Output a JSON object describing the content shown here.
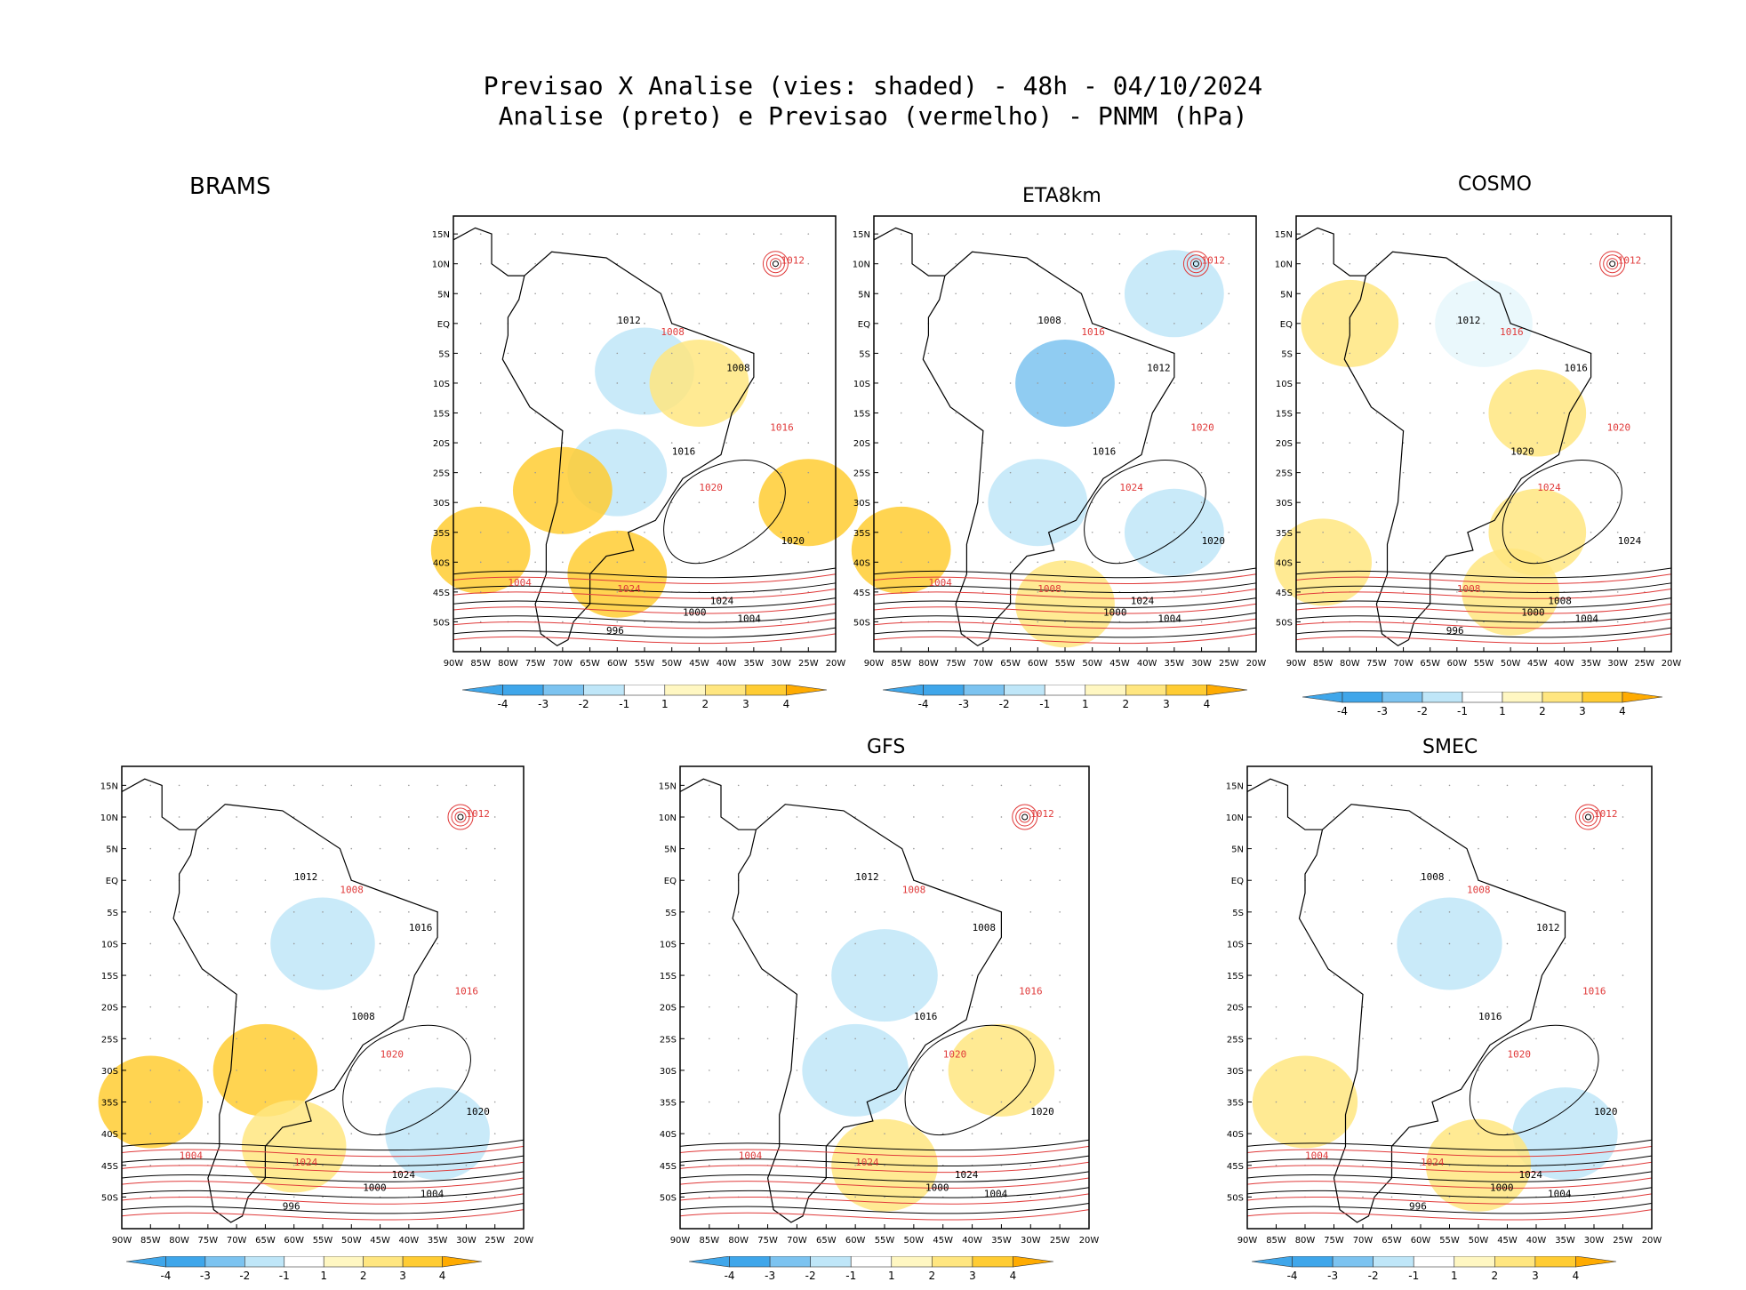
{
  "title": {
    "line1": "Previsao X Analise (vies: shaded) - 48h - 04/10/2024",
    "line2": "Analise (preto) e Previsao (vermelho) - PNMM (hPa)"
  },
  "colors": {
    "bias_neg_4": "#3fa6ea",
    "bias_neg_3": "#7cc3f0",
    "bias_neg_2": "#bfe6f8",
    "bias_neg_1": "#e6f7fb",
    "bias_zero": "#ffffff",
    "bias_pos_1": "#fff7c2",
    "bias_pos_2": "#ffe680",
    "bias_pos_3": "#ffcc33",
    "bias_pos_4": "#ffab00",
    "analysis_contour": "#000000",
    "forecast_contour": "#e03a3a"
  },
  "chart_data": [
    {
      "type": "heatmap",
      "model": "BRAMS",
      "xlabel": "",
      "ylabel": "",
      "x_ticks": [
        "90W",
        "85W",
        "80W",
        "75W",
        "70W",
        "65W",
        "60W",
        "55W",
        "50W",
        "45W",
        "40W",
        "35W",
        "30W",
        "25W",
        "20W"
      ],
      "y_ticks": [
        "15N",
        "10N",
        "5N",
        "EQ",
        "5S",
        "10S",
        "15S",
        "20S",
        "25S",
        "30S",
        "35S",
        "40S",
        "45S",
        "50S"
      ],
      "xlim": [
        -90,
        -20
      ],
      "ylim": [
        -55,
        18
      ],
      "colorbar_ticks": [
        "-4",
        "-3",
        "-2",
        "-1",
        "1",
        "2",
        "3",
        "4"
      ],
      "black_contour_labels": [
        "1012",
        "1008",
        "1016",
        "1020",
        "1024",
        "1004",
        "1000",
        "996"
      ],
      "red_contour_labels": [
        "1012",
        "1008",
        "1016",
        "1020",
        "1024",
        "1004"
      ],
      "bias_regions": [
        {
          "lon": -55,
          "lat": -8,
          "bias": -2
        },
        {
          "lon": -60,
          "lat": -25,
          "bias": -2
        },
        {
          "lon": -45,
          "lat": -10,
          "bias": 2
        },
        {
          "lon": -25,
          "lat": -30,
          "bias": 3
        },
        {
          "lon": -85,
          "lat": -38,
          "bias": 3
        },
        {
          "lon": -60,
          "lat": -42,
          "bias": 3
        },
        {
          "lon": -70,
          "lat": -28,
          "bias": 3
        }
      ]
    },
    {
      "type": "heatmap",
      "model": "ETA8km",
      "x_ticks": [
        "90W",
        "85W",
        "80W",
        "75W",
        "70W",
        "65W",
        "60W",
        "55W",
        "50W",
        "45W",
        "40W",
        "35W",
        "30W",
        "25W",
        "20W"
      ],
      "y_ticks": [
        "15N",
        "10N",
        "5N",
        "EQ",
        "5S",
        "10S",
        "15S",
        "20S",
        "25S",
        "30S",
        "35S",
        "40S",
        "45S",
        "50S"
      ],
      "xlim": [
        -90,
        -20
      ],
      "ylim": [
        -55,
        18
      ],
      "colorbar_ticks": [
        "-4",
        "-3",
        "-2",
        "-1",
        "1",
        "2",
        "3",
        "4"
      ],
      "black_contour_labels": [
        "1008",
        "1012",
        "1016",
        "1020",
        "1024",
        "1004",
        "1000"
      ],
      "red_contour_labels": [
        "1012",
        "1016",
        "1020",
        "1024",
        "1008",
        "1004"
      ],
      "bias_regions": [
        {
          "lon": -55,
          "lat": -10,
          "bias": -3
        },
        {
          "lon": -60,
          "lat": -30,
          "bias": -2
        },
        {
          "lon": -35,
          "lat": 5,
          "bias": -2
        },
        {
          "lon": -35,
          "lat": -35,
          "bias": -2
        },
        {
          "lon": -85,
          "lat": -38,
          "bias": 3
        },
        {
          "lon": -55,
          "lat": -47,
          "bias": 2
        }
      ]
    },
    {
      "type": "heatmap",
      "model": "COSMO",
      "x_ticks": [
        "90W",
        "85W",
        "80W",
        "75W",
        "70W",
        "65W",
        "60W",
        "55W",
        "50W",
        "45W",
        "40W",
        "35W",
        "30W",
        "25W",
        "20W"
      ],
      "y_ticks": [
        "15N",
        "10N",
        "5N",
        "EQ",
        "5S",
        "10S",
        "15S",
        "20S",
        "25S",
        "30S",
        "35S",
        "40S",
        "45S",
        "50S"
      ],
      "xlim": [
        -90,
        -20
      ],
      "ylim": [
        -55,
        18
      ],
      "colorbar_ticks": [
        "-4",
        "-3",
        "-2",
        "-1",
        "1",
        "2",
        "3",
        "4"
      ],
      "black_contour_labels": [
        "1012",
        "1016",
        "1020",
        "1024",
        "1008",
        "1004",
        "1000",
        "996"
      ],
      "red_contour_labels": [
        "1012",
        "1016",
        "1020",
        "1024",
        "1008"
      ],
      "bias_regions": [
        {
          "lon": -55,
          "lat": 0,
          "bias": -1
        },
        {
          "lon": -80,
          "lat": 0,
          "bias": 2
        },
        {
          "lon": -45,
          "lat": -15,
          "bias": 2
        },
        {
          "lon": -45,
          "lat": -35,
          "bias": 2
        },
        {
          "lon": -50,
          "lat": -45,
          "bias": 2
        },
        {
          "lon": -85,
          "lat": -40,
          "bias": 2
        }
      ]
    },
    {
      "type": "heatmap",
      "model": "",
      "x_ticks": [
        "90W",
        "85W",
        "80W",
        "75W",
        "70W",
        "65W",
        "60W",
        "55W",
        "50W",
        "45W",
        "40W",
        "35W",
        "30W",
        "25W",
        "20W"
      ],
      "y_ticks": [
        "15N",
        "10N",
        "5N",
        "EQ",
        "5S",
        "10S",
        "15S",
        "20S",
        "25S",
        "30S",
        "35S",
        "40S",
        "45S",
        "50S"
      ],
      "xlim": [
        -90,
        -20
      ],
      "ylim": [
        -55,
        18
      ],
      "colorbar_ticks": [
        "-4",
        "-3",
        "-2",
        "-1",
        "1",
        "2",
        "3",
        "4"
      ],
      "black_contour_labels": [
        "1012",
        "1016",
        "1008",
        "1020",
        "1024",
        "1004",
        "1000",
        "996"
      ],
      "red_contour_labels": [
        "1012",
        "1008",
        "1016",
        "1020",
        "1024",
        "1004"
      ],
      "bias_regions": [
        {
          "lon": -55,
          "lat": -10,
          "bias": -2
        },
        {
          "lon": -35,
          "lat": -40,
          "bias": -2
        },
        {
          "lon": -65,
          "lat": -30,
          "bias": 3
        },
        {
          "lon": -85,
          "lat": -35,
          "bias": 3
        },
        {
          "lon": -60,
          "lat": -42,
          "bias": 2
        }
      ]
    },
    {
      "type": "heatmap",
      "model": "GFS",
      "x_ticks": [
        "90W",
        "85W",
        "80W",
        "75W",
        "70W",
        "65W",
        "60W",
        "55W",
        "50W",
        "45W",
        "40W",
        "35W",
        "30W",
        "25W",
        "20W"
      ],
      "y_ticks": [
        "15N",
        "10N",
        "5N",
        "EQ",
        "5S",
        "10S",
        "15S",
        "20S",
        "25S",
        "30S",
        "35S",
        "40S",
        "45S",
        "50S"
      ],
      "xlim": [
        -90,
        -20
      ],
      "ylim": [
        -55,
        18
      ],
      "colorbar_ticks": [
        "-4",
        "-3",
        "-2",
        "-1",
        "1",
        "2",
        "3",
        "4"
      ],
      "black_contour_labels": [
        "1012",
        "1008",
        "1016",
        "1020",
        "1024",
        "1004",
        "1000"
      ],
      "red_contour_labels": [
        "1012",
        "1008",
        "1016",
        "1020",
        "1024",
        "1004"
      ],
      "bias_regions": [
        {
          "lon": -55,
          "lat": -15,
          "bias": -2
        },
        {
          "lon": -60,
          "lat": -30,
          "bias": -2
        },
        {
          "lon": -35,
          "lat": -30,
          "bias": 2
        },
        {
          "lon": -55,
          "lat": -45,
          "bias": 2
        }
      ]
    },
    {
      "type": "heatmap",
      "model": "SMEC",
      "x_ticks": [
        "90W",
        "85W",
        "80W",
        "75W",
        "70W",
        "65W",
        "60W",
        "55W",
        "50W",
        "45W",
        "40W",
        "35W",
        "30W",
        "25W",
        "20W"
      ],
      "y_ticks": [
        "15N",
        "10N",
        "5N",
        "EQ",
        "5S",
        "10S",
        "15S",
        "20S",
        "25S",
        "30S",
        "35S",
        "40S",
        "45S",
        "50S"
      ],
      "xlim": [
        -90,
        -20
      ],
      "ylim": [
        -55,
        18
      ],
      "colorbar_ticks": [
        "-4",
        "-3",
        "-2",
        "-1",
        "1",
        "2",
        "3",
        "4"
      ],
      "black_contour_labels": [
        "1008",
        "1012",
        "1016",
        "1020",
        "1024",
        "1004",
        "1000",
        "996"
      ],
      "red_contour_labels": [
        "1012",
        "1008",
        "1016",
        "1020",
        "1024",
        "1004"
      ],
      "bias_regions": [
        {
          "lon": -55,
          "lat": -10,
          "bias": -2
        },
        {
          "lon": -35,
          "lat": -40,
          "bias": -2
        },
        {
          "lon": -80,
          "lat": -35,
          "bias": 2
        },
        {
          "lon": -50,
          "lat": -45,
          "bias": 2
        }
      ]
    }
  ],
  "brams_label": "BRAMS"
}
